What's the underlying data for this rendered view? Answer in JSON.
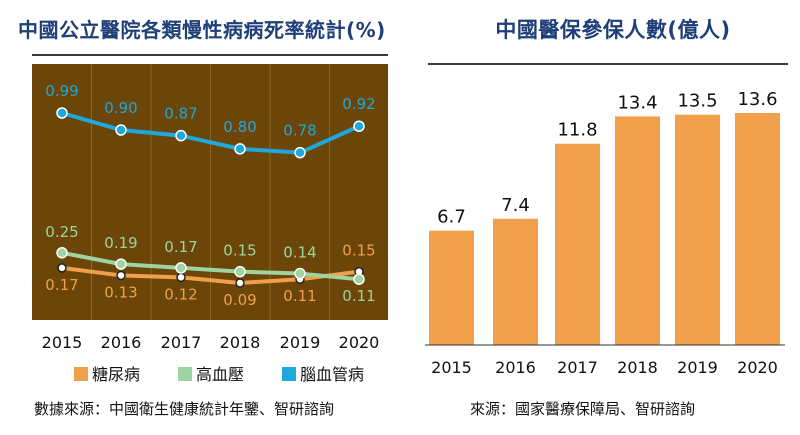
{
  "chart_data": [
    {
      "type": "line",
      "title": "中國公立醫院各類慢性病病死率統計(%)",
      "x": [
        "2015",
        "2016",
        "2017",
        "2018",
        "2019",
        "2020"
      ],
      "series": [
        {
          "name": "糖尿病",
          "color": "#f0a04a",
          "values": [
            0.17,
            0.13,
            0.12,
            0.09,
            0.11,
            0.15
          ]
        },
        {
          "name": "高血壓",
          "color": "#9dd4a0",
          "values": [
            0.25,
            0.19,
            0.17,
            0.15,
            0.14,
            0.11
          ]
        },
        {
          "name": "腦血管病",
          "color": "#1fa8dc",
          "values": [
            0.99,
            0.9,
            0.87,
            0.8,
            0.78,
            0.92
          ]
        }
      ],
      "background": "#6b4608",
      "legend": "bottom",
      "source": "數據來源：中國衛生健康統計年鑒、智研諮詢"
    },
    {
      "type": "bar",
      "title": "中國醫保參保人數(億人)",
      "categories": [
        "2015",
        "2016",
        "2017",
        "2018",
        "2019",
        "2020"
      ],
      "values": [
        6.7,
        7.4,
        11.8,
        13.4,
        13.5,
        13.6
      ],
      "color": "#f0a04a",
      "source": "來源：國家醫療保障局、智研諮詢"
    }
  ]
}
